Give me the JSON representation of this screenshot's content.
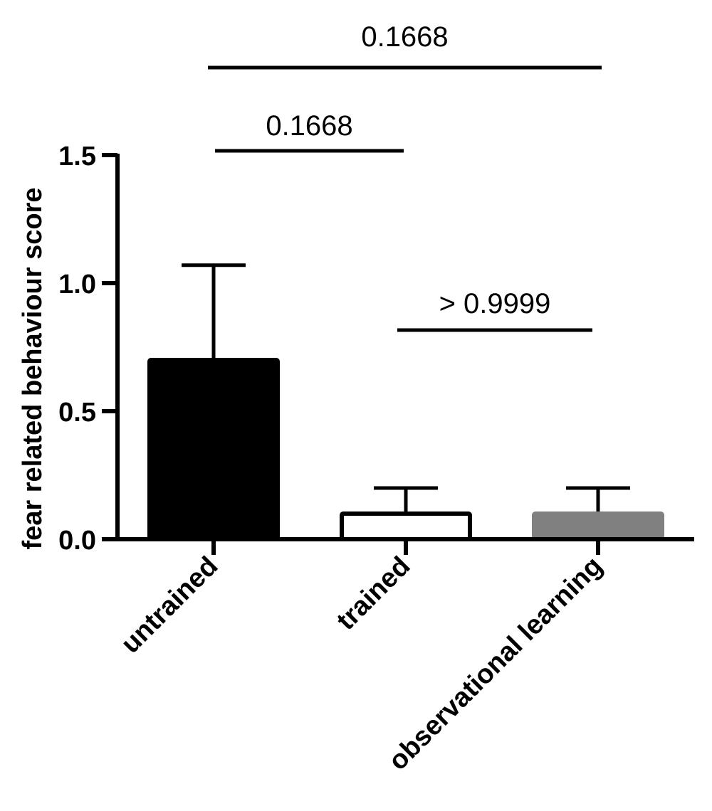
{
  "chart_data": {
    "type": "bar",
    "categories": [
      "untrained",
      "trained",
      "observational learning"
    ],
    "values": [
      0.7,
      0.1,
      0.1
    ],
    "error_upper": [
      1.07,
      0.2,
      0.2
    ],
    "bar_colors": [
      "#000000",
      "#ffffff",
      "#808080"
    ],
    "bar_edge_colors": [
      "#000000",
      "#000000",
      "#808080"
    ],
    "title": "",
    "xlabel": "",
    "ylabel": "fear related behaviour score",
    "ylim": [
      0,
      1.5
    ],
    "yticks": [
      0.0,
      0.5,
      1.0,
      1.5
    ],
    "ytick_labels": [
      "0.0",
      "0.5",
      "1.0",
      "1.5"
    ],
    "grid": false,
    "comparisons": [
      {
        "from": "untrained",
        "to": "observational learning",
        "label": "0.1668"
      },
      {
        "from": "untrained",
        "to": "trained",
        "label": "0.1668"
      },
      {
        "from": "trained",
        "to": "observational learning",
        "label": "> 0.9999"
      }
    ]
  }
}
